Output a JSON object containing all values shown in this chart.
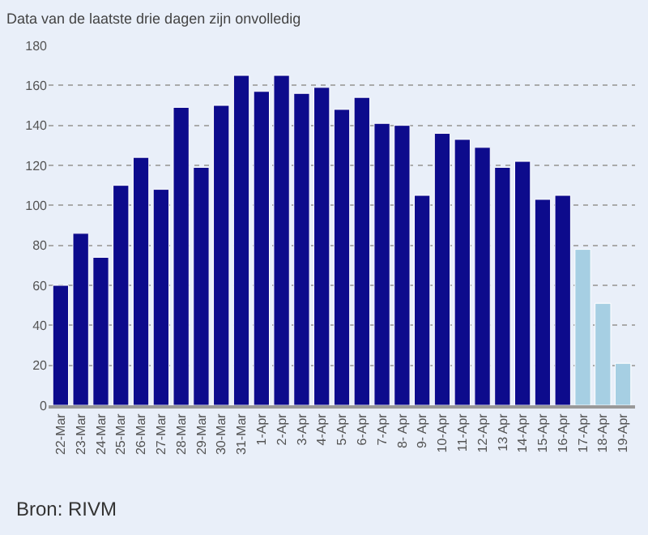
{
  "chart_data": {
    "type": "bar",
    "title": "Data van de laatste drie dagen zijn onvolledig",
    "categories": [
      "22-Mar",
      "23-Mar",
      "24-Mar",
      "25-Mar",
      "26-Mar",
      "27-Mar",
      "28-Mar",
      "29-Mar",
      "30-Mar",
      "31-Mar",
      "1-Apr",
      "2-Apr",
      "3-Apr",
      "4-Apr",
      "5-Apr",
      "6-Apr",
      "7-Apr",
      "8- Apr",
      "9- Apr",
      "10-Apr",
      "11-Apr",
      "12-Apr",
      "13 Apr",
      "14-Apr",
      "15-Apr",
      "16-Apr",
      "17-Apr",
      "18-Apr",
      "19-Apr"
    ],
    "values": [
      60,
      86,
      74,
      110,
      124,
      108,
      149,
      119,
      150,
      165,
      157,
      165,
      156,
      159,
      148,
      154,
      141,
      140,
      105,
      136,
      133,
      129,
      119,
      122,
      103,
      105,
      78,
      51,
      21
    ],
    "colors": [
      "#0d0b8c",
      "#0d0b8c",
      "#0d0b8c",
      "#0d0b8c",
      "#0d0b8c",
      "#0d0b8c",
      "#0d0b8c",
      "#0d0b8c",
      "#0d0b8c",
      "#0d0b8c",
      "#0d0b8c",
      "#0d0b8c",
      "#0d0b8c",
      "#0d0b8c",
      "#0d0b8c",
      "#0d0b8c",
      "#0d0b8c",
      "#0d0b8c",
      "#0d0b8c",
      "#0d0b8c",
      "#0d0b8c",
      "#0d0b8c",
      "#0d0b8c",
      "#0d0b8c",
      "#0d0b8c",
      "#0d0b8c",
      "#a6cfe3",
      "#a6cfe3",
      "#a6cfe3"
    ],
    "ylim": [
      0,
      180
    ],
    "yticks": [
      0,
      20,
      40,
      60,
      80,
      100,
      120,
      140,
      160,
      180
    ],
    "grid": "y",
    "annotations": [
      "Bron: RIVM"
    ]
  }
}
